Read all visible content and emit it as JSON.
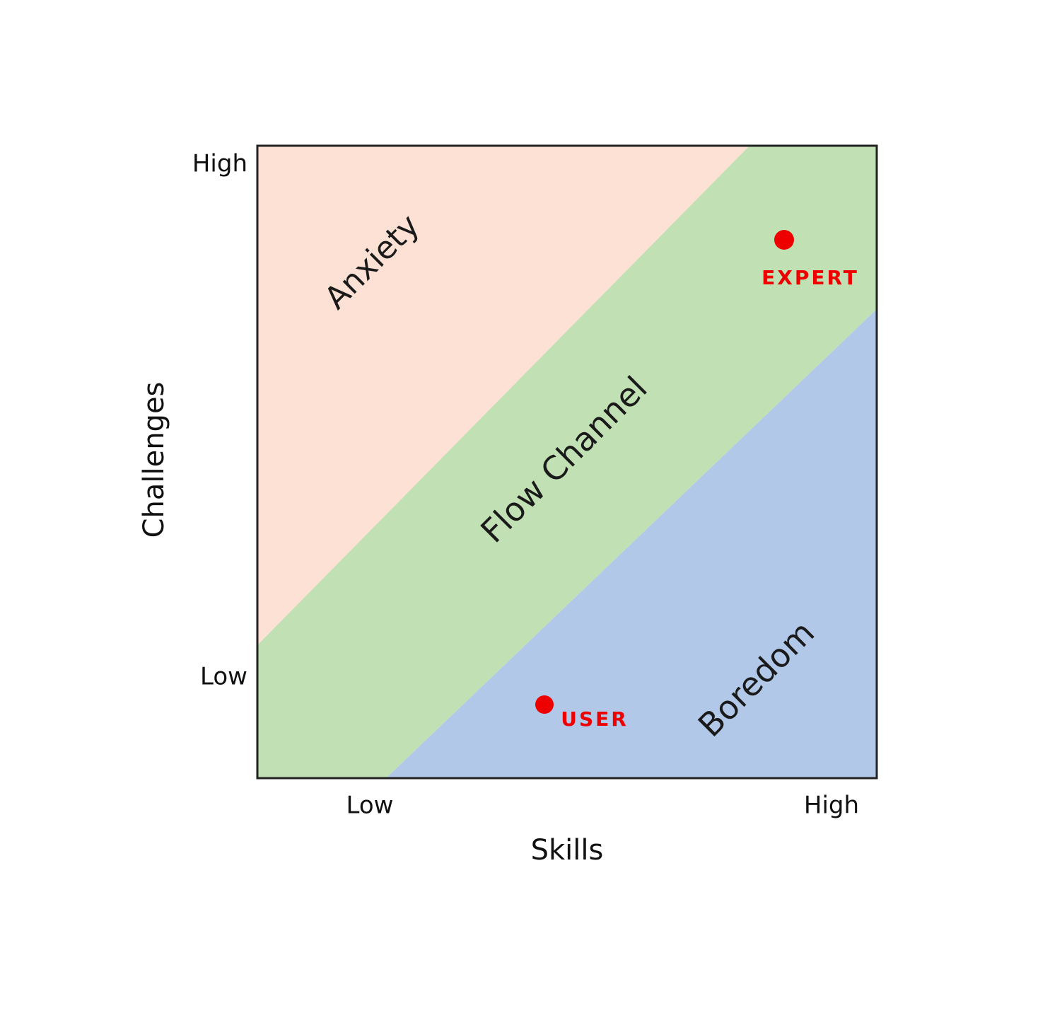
{
  "axes": {
    "x_title": "Skills",
    "y_title": "Challenges",
    "x_low": "Low",
    "x_high": "High",
    "y_low": "Low",
    "y_high": "High"
  },
  "regions": {
    "anxiety": "Anxiety",
    "flow": "Flow Channel",
    "boredom": "Boredom"
  },
  "annotations": {
    "expert": "EXPERT",
    "user": "USER"
  },
  "colors": {
    "anxiety": "#fde1d4",
    "flow": "#c1e0b3",
    "boredom": "#b1c8e9",
    "marker": "#ee0000",
    "frame": "#222222"
  }
}
